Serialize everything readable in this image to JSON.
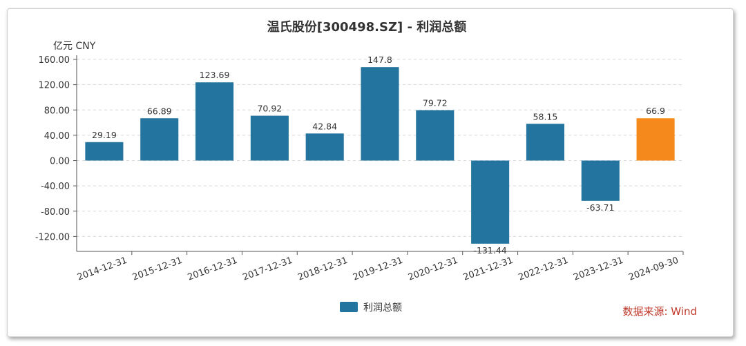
{
  "chart_data": {
    "type": "bar",
    "title": "温氏股份[300498.SZ] - 利润总额",
    "unit_label": "亿元  CNY",
    "categories": [
      "2014-12-31",
      "2015-12-31",
      "2016-12-31",
      "2017-12-31",
      "2018-12-31",
      "2019-12-31",
      "2020-12-31",
      "2021-12-31",
      "2022-12-31",
      "2023-12-31",
      "2024-09-30"
    ],
    "series": [
      {
        "name": "利润总额",
        "values": [
          29.19,
          66.89,
          123.69,
          70.92,
          42.84,
          147.8,
          79.72,
          -131.44,
          58.15,
          -63.71,
          66.9
        ]
      }
    ],
    "value_labels": [
      "29.19",
      "66.89",
      "123.69",
      "70.92",
      "42.84",
      "147.8",
      "79.72",
      "-131.44",
      "58.15",
      "-63.71",
      "66.9"
    ],
    "yticks": [
      "160.00",
      "120.00",
      "80.00",
      "40.00",
      "0.00",
      "-40.00",
      "-80.00",
      "-120.00"
    ],
    "ylim": [
      -135,
      160
    ],
    "grid": true,
    "legend_position": "bottom-center",
    "colors": {
      "bar": "#23759f",
      "highlight": "#f5891b",
      "highlight_index": 10
    }
  },
  "source_text": "数据来源: Wind"
}
